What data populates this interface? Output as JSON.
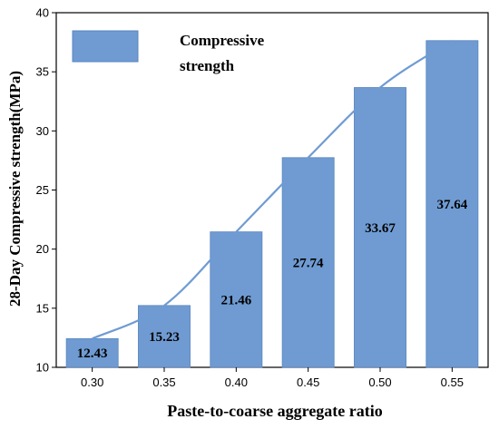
{
  "chart_data": {
    "type": "bar",
    "title": "",
    "xlabel": "Paste-to-coarse aggregate ratio",
    "ylabel": "28-Day Compressive strength(MPa)",
    "categories": [
      "0.30",
      "0.35",
      "0.40",
      "0.45",
      "0.50",
      "0.55"
    ],
    "series": [
      {
        "name": "Compressive strength",
        "values": [
          12.43,
          15.23,
          21.46,
          27.74,
          33.67,
          37.64
        ],
        "data_labels": [
          "12.43",
          "15.23",
          "21.46",
          "27.74",
          "33.67",
          "37.64"
        ]
      }
    ],
    "overlay": "smooth trend line through bar tops",
    "ylim": [
      10,
      40
    ],
    "yticks": [
      "10",
      "15",
      "20",
      "25",
      "30",
      "35",
      "40"
    ],
    "grid": false,
    "legend": {
      "placement": "top-left",
      "line1": "Compressive",
      "line2": "strength"
    },
    "colors": {
      "bar": "#6f9bd2",
      "bar_edge": "#5a86bf",
      "line": "#6f9bd2",
      "axis": "#000000"
    }
  }
}
